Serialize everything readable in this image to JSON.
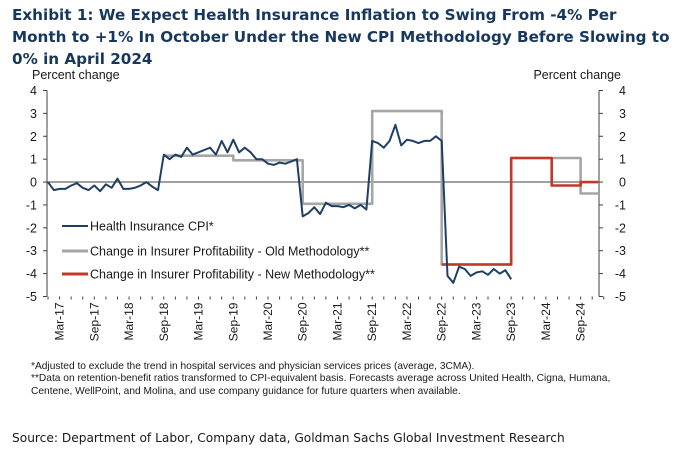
{
  "title": "Exhibit 1: We Expect Health Insurance Inflation to Swing From -4% Per Month to +1% In October Under the New CPI Methodology Before Slowing to 0% in April 2024",
  "notes": [
    "*Adjusted to exclude the trend in hospital services and physician services prices (average, 3CMA).",
    "**Data on retention-benefit ratios transformed to CPI-equivalent  basis. Forecasts average across United Health, Cigna, Humana, Centene, WellPoint, and Molina, and use company guidance for future quarters when available."
  ],
  "source": "Source: Department of Labor, Company data, Goldman Sachs Global Investment Research",
  "chart_data": {
    "type": "line",
    "ylabel_left": "Percent change",
    "ylabel_right": "Percent change",
    "ylim": [
      -5,
      4
    ],
    "yticks": [
      4,
      3,
      2,
      1,
      0,
      -1,
      -2,
      -3,
      -4,
      -5
    ],
    "x_tick_labels": [
      "Mar-17",
      "Sep-17",
      "Mar-18",
      "Sep-18",
      "Mar-19",
      "Sep-19",
      "Mar-20",
      "Sep-20",
      "Mar-21",
      "Sep-21",
      "Mar-22",
      "Sep-22",
      "Mar-23",
      "Sep-23",
      "Mar-24",
      "Sep-24"
    ],
    "legend_placement": "lower-left",
    "grid": false,
    "series": [
      {
        "name": "Health Insurance CPI*",
        "color": "#1f3f64",
        "points": [
          [
            "Jan-17",
            0.0
          ],
          [
            "Feb-17",
            -0.35
          ],
          [
            "Mar-17",
            -0.3
          ],
          [
            "Apr-17",
            -0.3
          ],
          [
            "May-17",
            -0.15
          ],
          [
            "Jun-17",
            -0.05
          ],
          [
            "Jul-17",
            -0.25
          ],
          [
            "Aug-17",
            -0.35
          ],
          [
            "Sep-17",
            -0.15
          ],
          [
            "Oct-17",
            -0.4
          ],
          [
            "Nov-17",
            -0.1
          ],
          [
            "Dec-17",
            -0.25
          ],
          [
            "Jan-18",
            0.15
          ],
          [
            "Feb-18",
            -0.3
          ],
          [
            "Mar-18",
            -0.3
          ],
          [
            "Apr-18",
            -0.25
          ],
          [
            "May-18",
            -0.15
          ],
          [
            "Jun-18",
            0.0
          ],
          [
            "Jul-18",
            -0.2
          ],
          [
            "Aug-18",
            -0.35
          ],
          [
            "Sep-18",
            1.2
          ],
          [
            "Oct-18",
            1.0
          ],
          [
            "Nov-18",
            1.2
          ],
          [
            "Dec-18",
            1.1
          ],
          [
            "Jan-19",
            1.5
          ],
          [
            "Feb-19",
            1.2
          ],
          [
            "Mar-19",
            1.3
          ],
          [
            "Apr-19",
            1.4
          ],
          [
            "May-19",
            1.5
          ],
          [
            "Jun-19",
            1.2
          ],
          [
            "Jul-19",
            1.8
          ],
          [
            "Aug-19",
            1.3
          ],
          [
            "Sep-19",
            1.85
          ],
          [
            "Oct-19",
            1.3
          ],
          [
            "Nov-19",
            1.5
          ],
          [
            "Dec-19",
            1.3
          ],
          [
            "Jan-20",
            1.0
          ],
          [
            "Feb-20",
            1.0
          ],
          [
            "Mar-20",
            0.8
          ],
          [
            "Apr-20",
            0.75
          ],
          [
            "May-20",
            0.85
          ],
          [
            "Jun-20",
            0.8
          ],
          [
            "Jul-20",
            0.9
          ],
          [
            "Aug-20",
            1.0
          ],
          [
            "Sep-20",
            -1.5
          ],
          [
            "Oct-20",
            -1.35
          ],
          [
            "Nov-20",
            -1.1
          ],
          [
            "Dec-20",
            -1.4
          ],
          [
            "Jan-21",
            -0.9
          ],
          [
            "Feb-21",
            -1.05
          ],
          [
            "Mar-21",
            -1.05
          ],
          [
            "Apr-21",
            -1.1
          ],
          [
            "May-21",
            -1.0
          ],
          [
            "Jun-21",
            -1.15
          ],
          [
            "Jul-21",
            -1.0
          ],
          [
            "Aug-21",
            -1.2
          ],
          [
            "Sep-21",
            1.8
          ],
          [
            "Oct-21",
            1.7
          ],
          [
            "Nov-21",
            1.5
          ],
          [
            "Dec-21",
            1.8
          ],
          [
            "Jan-22",
            2.5
          ],
          [
            "Feb-22",
            1.6
          ],
          [
            "Mar-22",
            1.85
          ],
          [
            "Apr-22",
            1.8
          ],
          [
            "May-22",
            1.7
          ],
          [
            "Jun-22",
            1.8
          ],
          [
            "Jul-22",
            1.8
          ],
          [
            "Aug-22",
            2.0
          ],
          [
            "Sep-22",
            1.8
          ],
          [
            "Oct-22",
            -4.1
          ],
          [
            "Nov-22",
            -4.4
          ],
          [
            "Dec-22",
            -3.7
          ],
          [
            "Jan-23",
            -3.8
          ],
          [
            "Feb-23",
            -4.1
          ],
          [
            "Mar-23",
            -3.95
          ],
          [
            "Apr-23",
            -3.9
          ],
          [
            "May-23",
            -4.05
          ],
          [
            "Jun-23",
            -3.8
          ],
          [
            "Jul-23",
            -4.0
          ],
          [
            "Aug-23",
            -3.85
          ],
          [
            "Sep-23",
            -4.25
          ]
        ]
      },
      {
        "name": "Change in Insurer Profitability - Old Methodology**",
        "color": "#a6a6a6",
        "points": [
          [
            "Sep-18",
            1.15
          ],
          [
            "Sep-19",
            1.15
          ],
          [
            "Sep-19",
            0.95
          ],
          [
            "Sep-20",
            0.95
          ],
          [
            "Sep-20",
            -0.95
          ],
          [
            "Sep-21",
            -0.95
          ],
          [
            "Sep-21",
            3.1
          ],
          [
            "Sep-22",
            3.1
          ],
          [
            "Sep-22",
            -3.6
          ],
          [
            "Sep-23",
            -3.6
          ],
          [
            "Sep-23",
            1.05
          ],
          [
            "Sep-24",
            1.05
          ],
          [
            "Sep-24",
            -0.5
          ],
          [
            "Dec-24",
            -0.5
          ]
        ]
      },
      {
        "name": "Change in Insurer Profitability - New Methodology**",
        "color": "#c0392b",
        "points": [
          [
            "Sep-22",
            -3.6
          ],
          [
            "Sep-23",
            -3.6
          ],
          [
            "Sep-23",
            1.05
          ],
          [
            "Apr-24",
            1.05
          ],
          [
            "Apr-24",
            -0.15
          ],
          [
            "Sep-24",
            -0.15
          ],
          [
            "Sep-24",
            0.0
          ],
          [
            "Dec-24",
            0.0
          ]
        ]
      }
    ]
  }
}
